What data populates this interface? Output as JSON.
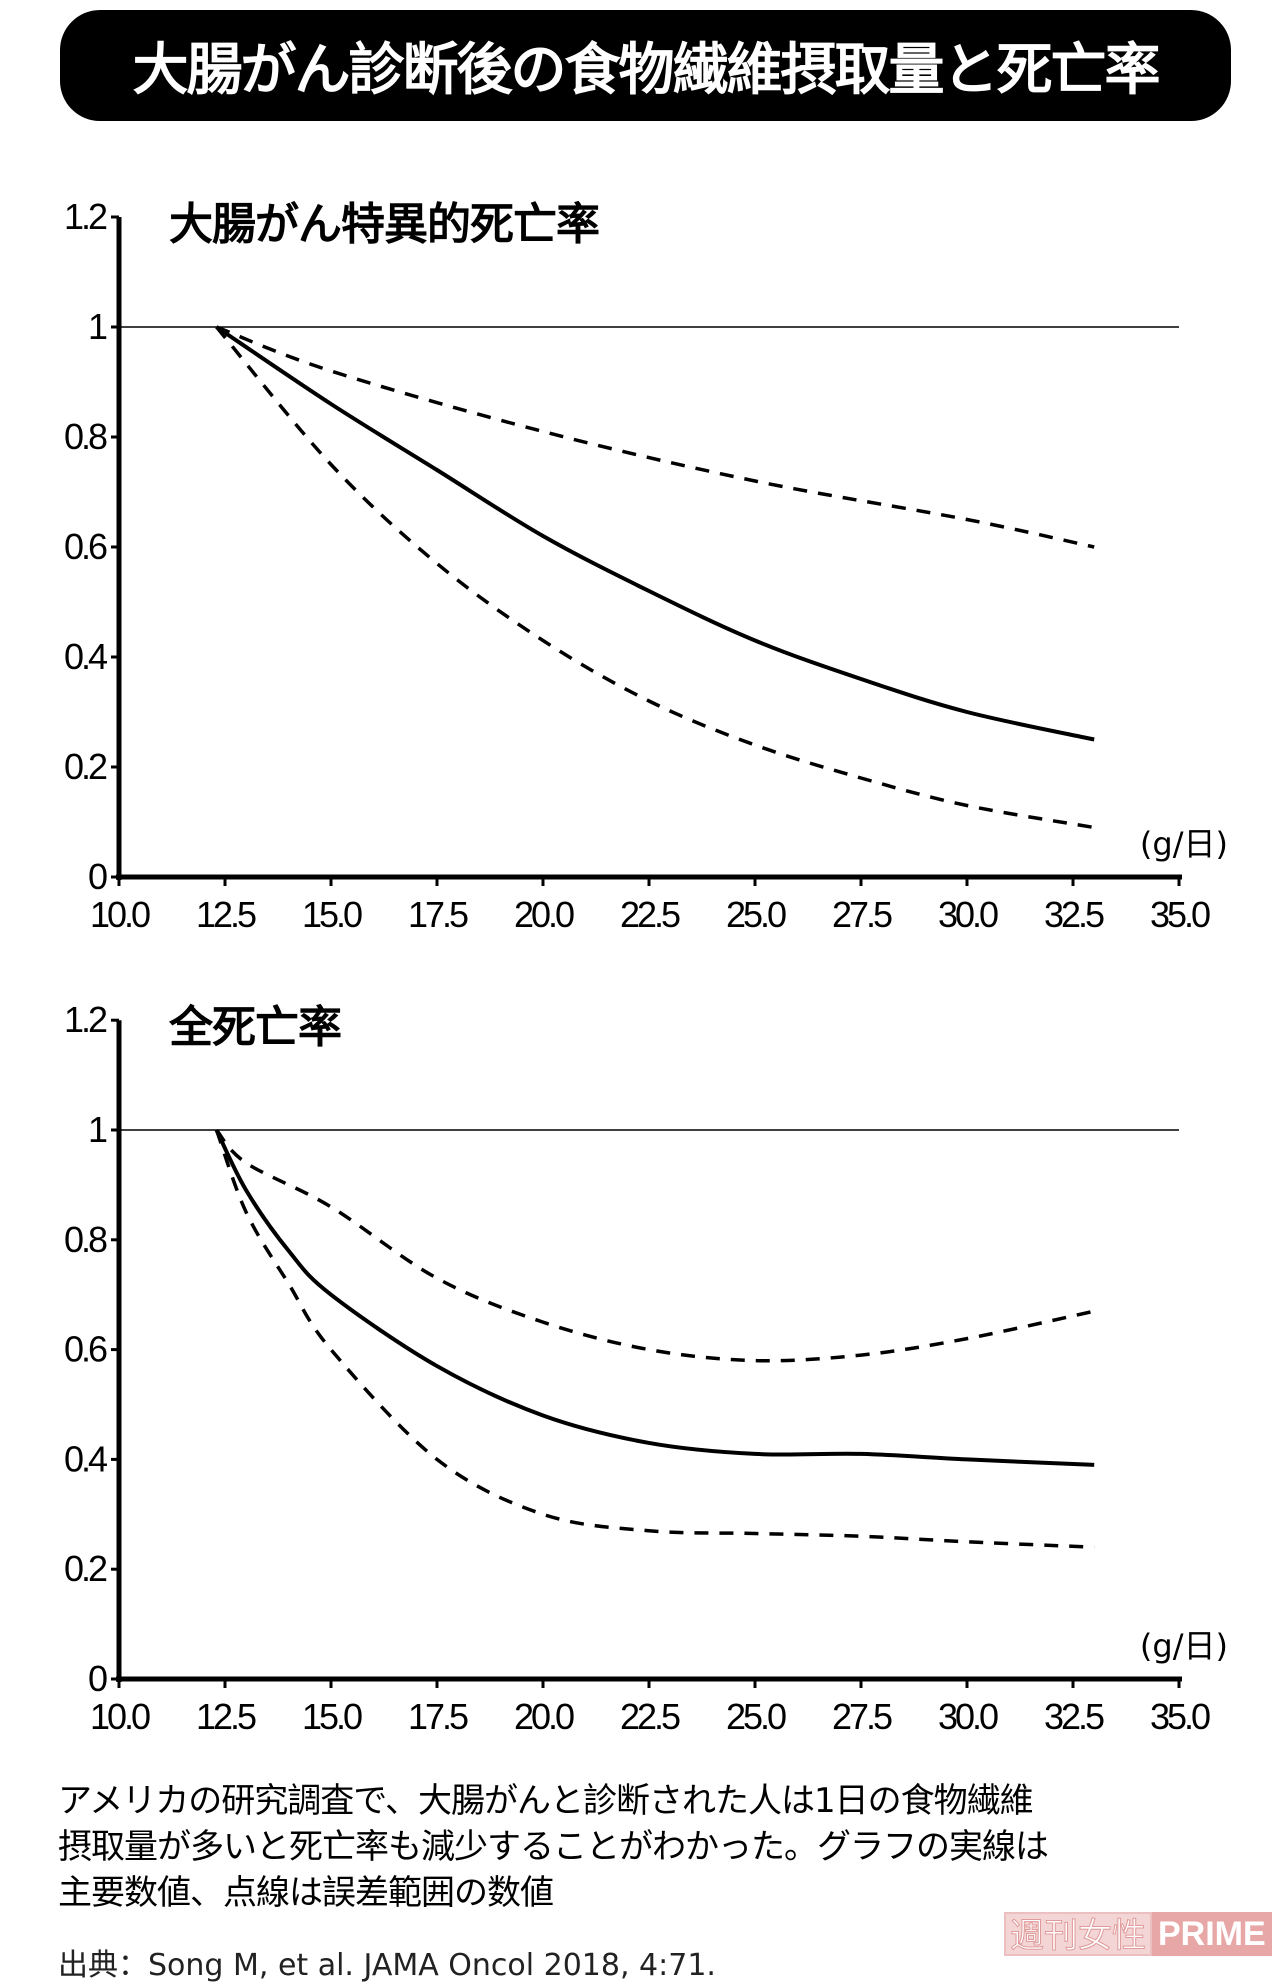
{
  "header": {
    "title": "大腸がん診断後の食物繊維摂取量と死亡率"
  },
  "chart_data": [
    {
      "type": "line",
      "title": "大腸がん特異的死亡率",
      "xlabel": "(g/日)",
      "ylabel": "",
      "xlim": [
        10.0,
        35.0
      ],
      "ylim": [
        0,
        1.2
      ],
      "xticks": [
        "10.0",
        "12.5",
        "15.0",
        "17.5",
        "20.0",
        "22.5",
        "25.0",
        "27.5",
        "30.0",
        "32.5",
        "35.0"
      ],
      "yticks": [
        "0",
        "0.2",
        "0.4",
        "0.6",
        "0.8",
        "1",
        "1.2"
      ],
      "reference_line": 1,
      "grid": false,
      "series": [
        {
          "style": "solid",
          "x": [
            12.3,
            15,
            17.5,
            20,
            22.5,
            25,
            27.5,
            30,
            33
          ],
          "y": [
            1,
            0.86,
            0.74,
            0.62,
            0.52,
            0.43,
            0.36,
            0.3,
            0.25
          ]
        },
        {
          "style": "dashed",
          "x": [
            12.3,
            15,
            20,
            25,
            30,
            33
          ],
          "y": [
            1,
            0.92,
            0.81,
            0.72,
            0.65,
            0.6
          ]
        },
        {
          "style": "dashed",
          "x": [
            12.3,
            15,
            17.5,
            20,
            22.5,
            25,
            27.5,
            30,
            33
          ],
          "y": [
            1,
            0.75,
            0.57,
            0.43,
            0.32,
            0.24,
            0.18,
            0.13,
            0.09
          ]
        }
      ]
    },
    {
      "type": "line",
      "title": "全死亡率",
      "xlabel": "(g/日)",
      "ylabel": "",
      "xlim": [
        10.0,
        35.0
      ],
      "ylim": [
        0,
        1.2
      ],
      "xticks": [
        "10.0",
        "12.5",
        "15.0",
        "17.5",
        "20.0",
        "22.5",
        "25.0",
        "27.5",
        "30.0",
        "32.5",
        "35.0"
      ],
      "yticks": [
        "0",
        "0.2",
        "0.4",
        "0.6",
        "0.8",
        "1",
        "1.2"
      ],
      "reference_line": 1,
      "grid": false,
      "series": [
        {
          "style": "solid",
          "x": [
            12.3,
            13,
            14,
            15,
            17.5,
            20,
            22.5,
            25,
            27.5,
            30,
            33
          ],
          "y": [
            1,
            0.89,
            0.78,
            0.7,
            0.57,
            0.48,
            0.43,
            0.41,
            0.41,
            0.4,
            0.39
          ]
        },
        {
          "style": "dashed",
          "x": [
            12.3,
            13,
            15,
            17.5,
            20,
            22.5,
            25,
            27.5,
            30,
            33
          ],
          "y": [
            1,
            0.94,
            0.86,
            0.73,
            0.65,
            0.6,
            0.58,
            0.59,
            0.62,
            0.67
          ]
        },
        {
          "style": "dashed",
          "x": [
            12.3,
            13,
            14,
            15,
            17.5,
            20,
            22.5,
            25,
            27.5,
            30,
            33
          ],
          "y": [
            1,
            0.85,
            0.72,
            0.6,
            0.4,
            0.3,
            0.27,
            0.265,
            0.26,
            0.25,
            0.24
          ]
        }
      ]
    }
  ],
  "caption": {
    "lines": [
      "アメリカの研究調査で、大腸がんと診断された人は1日の食物繊維",
      "摂取量が多いと死亡率も減少することがわかった。グラフの実線は",
      "主要数値、点線は誤差範囲の数値"
    ],
    "source": "出典：Song M, et al. JAMA Oncol 2018, 4:71."
  },
  "watermark": {
    "part1": "週刊女性",
    "part2": "PRIME"
  }
}
